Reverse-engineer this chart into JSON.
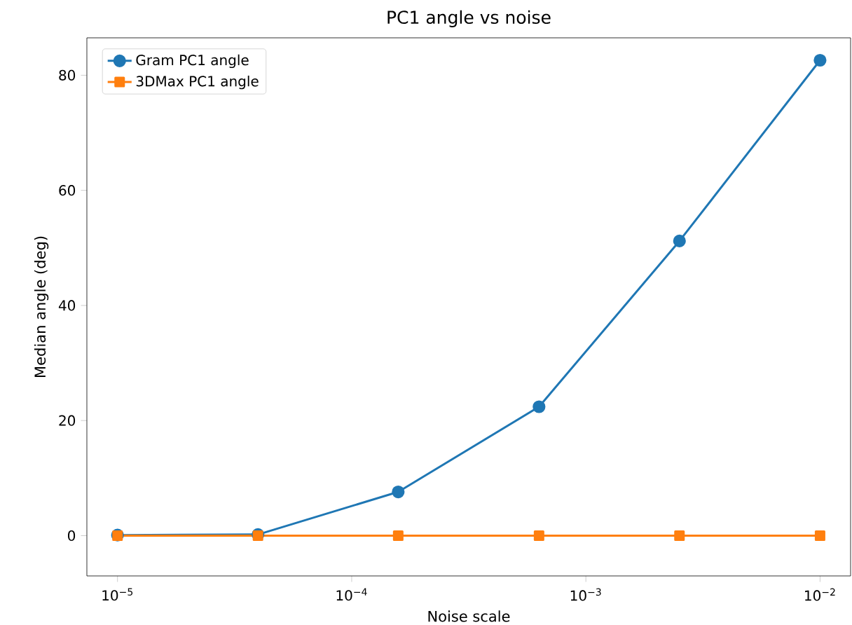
{
  "chart_data": {
    "type": "line",
    "title": "PC1 angle vs noise",
    "xlabel": "Noise scale",
    "ylabel": "Median angle (deg)",
    "log": "x",
    "x": [
      1e-05,
      3.98e-05,
      0.000158,
      0.000631,
      0.00251,
      0.01
    ],
    "series": [
      {
        "name": "Gram PC1 angle",
        "color": "#1f77b4",
        "marker": "circle",
        "values": [
          0.1,
          0.2,
          7.6,
          22.4,
          51.2,
          82.6
        ]
      },
      {
        "name": "3DMax PC1 angle",
        "color": "#ff7f0e",
        "marker": "square",
        "values": [
          0,
          0,
          0,
          0,
          0,
          0
        ]
      }
    ],
    "xlim": [
      7.4e-06,
      0.0135
    ],
    "ylim": [
      -7,
      86.5
    ],
    "xticks": [
      {
        "value": 1e-05,
        "label": "10$^{−5}$"
      },
      {
        "value": 0.0001,
        "label": "10$^{−4}$"
      },
      {
        "value": 0.001,
        "label": "10$^{−3}$"
      },
      {
        "value": 0.01,
        "label": "10$^{−2}$"
      }
    ],
    "yticks": [
      0,
      20,
      40,
      60,
      80
    ],
    "legend": "top left",
    "grid": false,
    "line_style": "solid"
  }
}
